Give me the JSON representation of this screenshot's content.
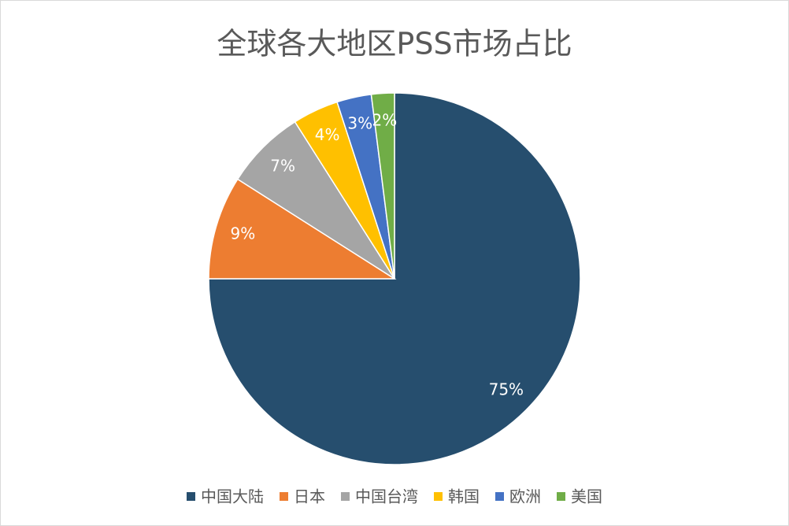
{
  "chart_data": {
    "type": "pie",
    "title": "全球各大地区PSS市场占比",
    "categories": [
      "中国大陆",
      "日本",
      "中国台湾",
      "韩国",
      "欧洲",
      "美国"
    ],
    "values": [
      75,
      9,
      7,
      4,
      3,
      2
    ],
    "value_labels": [
      "75%",
      "9%",
      "7%",
      "4%",
      "3%",
      "2%"
    ],
    "colors": [
      "#264E6E",
      "#ED7D31",
      "#A5A5A5",
      "#FFC000",
      "#4472C4",
      "#70AD47"
    ],
    "legend": "bottom"
  }
}
